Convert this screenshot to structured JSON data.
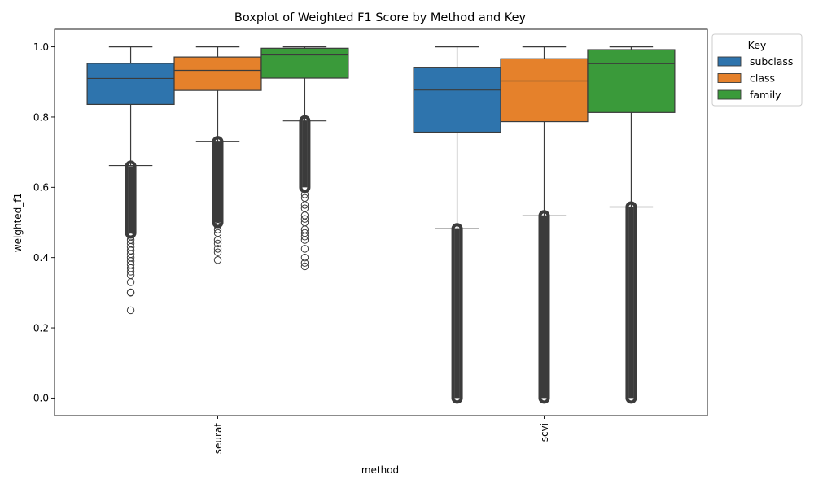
{
  "chart_data": {
    "type": "boxplot",
    "title": "Boxplot of Weighted F1 Score by Method and Key",
    "xlabel": "method",
    "ylabel": "weighted_f1",
    "ylim": [
      -0.05,
      1.05
    ],
    "yticks": [
      "0.0",
      "0.2",
      "0.4",
      "0.6",
      "0.8",
      "1.0"
    ],
    "yticks_values": [
      0.0,
      0.2,
      0.4,
      0.6,
      0.8,
      1.0
    ],
    "categories": [
      "seurat",
      "scvi"
    ],
    "legend": {
      "title": "Key",
      "placement": "outside upper-right"
    },
    "series": [
      {
        "name": "subclass",
        "color": "#2e74ad",
        "boxes": [
          {
            "method": "seurat",
            "whisker_low": 0.662,
            "q1": 0.836,
            "median": 0.91,
            "q3": 0.953,
            "whisker_high": 1.0,
            "outlier_band": [
              0.47,
              0.66
            ],
            "outliers": [
              0.25,
              0.3,
              0.301,
              0.33,
              0.35,
              0.36,
              0.37,
              0.38,
              0.39,
              0.4,
              0.41,
              0.42,
              0.43,
              0.44,
              0.45,
              0.46
            ]
          },
          {
            "method": "scvi",
            "whisker_low": 0.482,
            "q1": 0.757,
            "median": 0.877,
            "q3": 0.942,
            "whisker_high": 1.0,
            "outlier_band": [
              0.0,
              0.482
            ],
            "outliers": []
          }
        ]
      },
      {
        "name": "class",
        "color": "#e5812b",
        "boxes": [
          {
            "method": "seurat",
            "whisker_low": 0.731,
            "q1": 0.876,
            "median": 0.933,
            "q3": 0.971,
            "whisker_high": 1.0,
            "outlier_band": [
              0.5,
              0.73
            ],
            "outliers": [
              0.393,
              0.415,
              0.425,
              0.44,
              0.45,
              0.47,
              0.48,
              0.49
            ]
          },
          {
            "method": "scvi",
            "whisker_low": 0.519,
            "q1": 0.787,
            "median": 0.903,
            "q3": 0.966,
            "whisker_high": 1.0,
            "outlier_band": [
              0.0,
              0.519
            ],
            "outliers": []
          }
        ]
      },
      {
        "name": "family",
        "color": "#3a9a3a",
        "boxes": [
          {
            "method": "seurat",
            "whisker_low": 0.789,
            "q1": 0.911,
            "median": 0.977,
            "q3": 0.996,
            "whisker_high": 1.0,
            "outlier_band": [
              0.6,
              0.789
            ],
            "outliers": [
              0.375,
              0.385,
              0.4,
              0.425,
              0.45,
              0.46,
              0.47,
              0.48,
              0.5,
              0.51,
              0.52,
              0.54,
              0.55,
              0.57,
              0.58
            ]
          },
          {
            "method": "scvi",
            "whisker_low": 0.544,
            "q1": 0.813,
            "median": 0.952,
            "q3": 0.992,
            "whisker_high": 1.0,
            "outlier_band": [
              0.0,
              0.544
            ],
            "outliers": []
          }
        ]
      }
    ]
  }
}
